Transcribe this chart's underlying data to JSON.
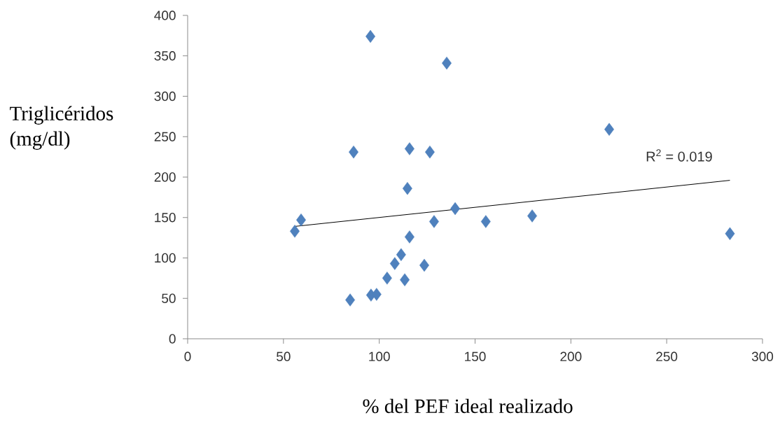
{
  "chart_data": {
    "type": "scatter",
    "xlabel": "% del PEF ideal realizado",
    "ylabel": "Triglicéridos (mg/dl)",
    "annotations": [
      "R$^{2}$ = 0.019"
    ],
    "marker": "diamond",
    "grid": false,
    "xlim": [
      0,
      300
    ],
    "ylim": [
      0,
      400
    ],
    "xticks": [
      0,
      50,
      100,
      150,
      200,
      250,
      300
    ],
    "yticks": [
      0,
      50,
      100,
      150,
      200,
      250,
      300,
      350,
      400
    ],
    "series": [
      {
        "color": "#4f81bd",
        "x": [
          95.4,
          135.2,
          220,
          86.6,
          115.8,
          126.4,
          114.7,
          139.6,
          59.2,
          55.9,
          128.6,
          155.6,
          179.8,
          283,
          115.8,
          111.4,
          108.1,
          123.5,
          104.1,
          113.3,
          95.7,
          98.6,
          84.8
        ],
        "values": [
          374,
          341,
          259,
          231,
          235,
          231,
          186,
          161,
          147,
          133,
          145,
          145,
          152,
          130,
          126,
          104,
          93,
          91,
          75,
          73,
          54,
          55,
          48
        ]
      },
      {
        "type": "line",
        "marker": "none",
        "color": "#000000",
        "x": [
          55.9,
          283
        ],
        "values": [
          139,
          196
        ]
      }
    ]
  }
}
